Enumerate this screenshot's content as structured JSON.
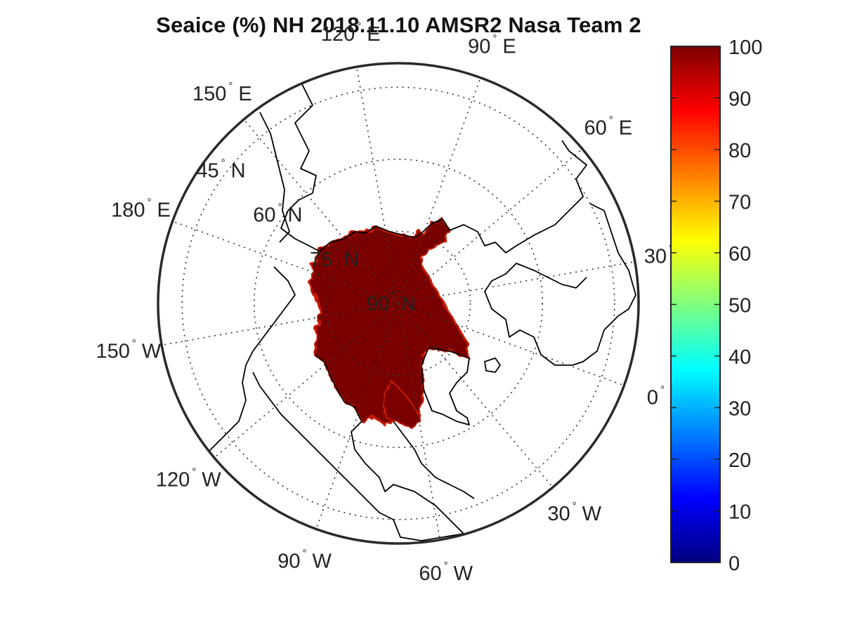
{
  "title": "Seaice (%) NH 2018.11.10 AMSR2 Nasa Team 2",
  "longitude_labels": [
    {
      "deg": 120,
      "prefix": "120",
      "suffix": "E"
    },
    {
      "deg": 90,
      "prefix": "90",
      "suffix": "E"
    },
    {
      "deg": 150,
      "prefix": "150",
      "suffix": "E"
    },
    {
      "deg": 60,
      "prefix": "60",
      "suffix": "E"
    },
    {
      "deg": 180,
      "prefix": "180",
      "suffix": "E"
    },
    {
      "deg": 30,
      "prefix": "30",
      "suffix": "E"
    },
    {
      "deg": -150,
      "prefix": "150",
      "suffix": "W"
    },
    {
      "deg": 0,
      "prefix": "0",
      "suffix": ""
    },
    {
      "deg": -120,
      "prefix": "120",
      "suffix": "W"
    },
    {
      "deg": -30,
      "prefix": "30",
      "suffix": "W"
    },
    {
      "deg": -90,
      "prefix": "90",
      "suffix": "W"
    },
    {
      "deg": -60,
      "prefix": "60",
      "suffix": "W"
    }
  ],
  "latitude_labels": [
    {
      "lat": 45,
      "text": "45",
      "suffix": "N"
    },
    {
      "lat": 60,
      "text": "60",
      "suffix": "N"
    },
    {
      "lat": 75,
      "text": "75",
      "suffix": "N"
    },
    {
      "lat": 90,
      "text": "90",
      "suffix": "N"
    }
  ],
  "colorbar": {
    "min": 0,
    "max": 100,
    "ticks": [
      "0",
      "10",
      "20",
      "30",
      "40",
      "50",
      "60",
      "70",
      "80",
      "90",
      "100"
    ],
    "colormap": "jet",
    "colors": [
      "#00007f",
      "#0000ff",
      "#007fff",
      "#00ffff",
      "#7fff7f",
      "#ffff00",
      "#ff7f00",
      "#ff0000",
      "#7f0000"
    ]
  },
  "colors": {
    "ice": "#7a0000",
    "ice_edge": "#c81a00",
    "land_outline": "#000000",
    "grid": "#333333"
  }
}
